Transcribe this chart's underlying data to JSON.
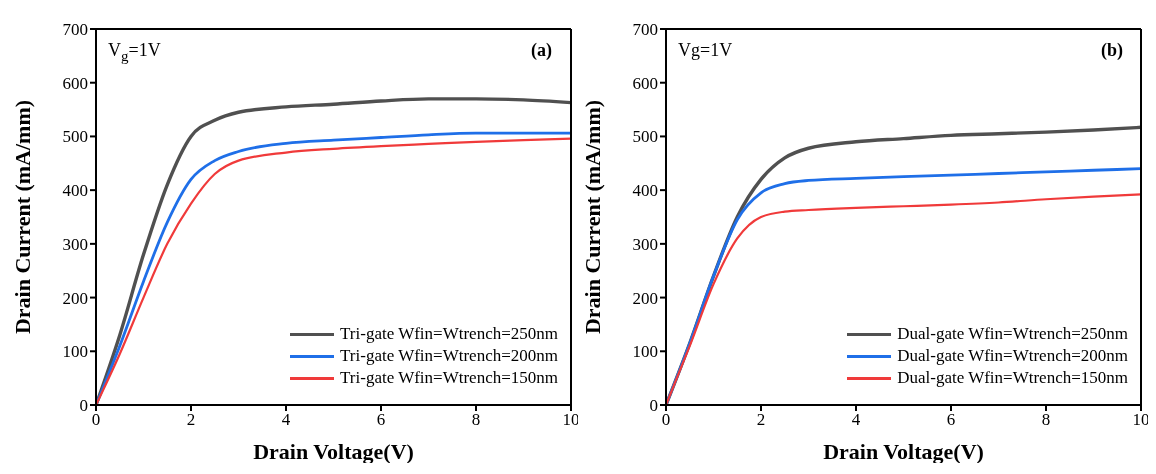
{
  "chart_data": [
    {
      "type": "line",
      "xlabel": "Drain Voltage(V)",
      "ylabel": "Drain Current (mA/mm)",
      "annotations": [
        "V$_{g}$=1V",
        "(a)"
      ],
      "x": [
        0,
        0.5,
        1,
        1.5,
        2,
        2.5,
        3,
        4,
        5,
        6,
        7,
        8,
        9,
        10
      ],
      "xlim": [
        0,
        10
      ],
      "xticks": [
        0,
        2,
        4,
        6,
        8,
        10
      ],
      "ylim": [
        0,
        700
      ],
      "yticks": [
        0,
        100,
        200,
        300,
        400,
        500,
        600,
        700
      ],
      "legend": "bottom right",
      "grid": false,
      "series": [
        {
          "name": "Tri-gate Wfin=Wtrench=250nm",
          "color": "#505050",
          "values": [
            0,
            130,
            280,
            410,
            500,
            530,
            545,
            555,
            560,
            566,
            570,
            570,
            568,
            563
          ]
        },
        {
          "name": "Tri-gate Wfin=Wtrench=200nm",
          "color": "#1f6fe8",
          "values": [
            0,
            110,
            230,
            340,
            420,
            455,
            472,
            487,
            493,
            498,
            503,
            506,
            506,
            506
          ]
        },
        {
          "name": "Tri-gate Wfin=Wtrench=150nm",
          "color": "#f03a3a",
          "values": [
            0,
            95,
            200,
            300,
            375,
            430,
            455,
            470,
            477,
            482,
            486,
            490,
            493,
            496
          ]
        }
      ]
    },
    {
      "type": "line",
      "xlabel": "Drain Voltage(V)",
      "ylabel": "Drain Current (mA/mm)",
      "annotations": [
        "Vg=1V",
        "(b)"
      ],
      "x": [
        0,
        0.5,
        1,
        1.5,
        2,
        2.5,
        3,
        4,
        5,
        6,
        7,
        8,
        9,
        10
      ],
      "xlim": [
        0,
        10
      ],
      "xticks": [
        0,
        2,
        4,
        6,
        8,
        10
      ],
      "ylim": [
        0,
        700
      ],
      "yticks": [
        0,
        100,
        200,
        300,
        400,
        500,
        600,
        700
      ],
      "legend": "bottom right",
      "grid": false,
      "series": [
        {
          "name": "Dual-gate Wfin=Wtrench=250nm",
          "color": "#505050",
          "values": [
            0,
            115,
            240,
            350,
            420,
            460,
            478,
            490,
            496,
            502,
            505,
            508,
            512,
            517
          ]
        },
        {
          "name": "Dual-gate Wfin=Wtrench=200nm",
          "color": "#1f6fe8",
          "values": [
            0,
            115,
            240,
            345,
            395,
            412,
            418,
            422,
            425,
            428,
            431,
            434,
            437,
            440
          ]
        },
        {
          "name": "Dual-gate Wfin=Wtrench=150nm",
          "color": "#f03a3a",
          "values": [
            0,
            110,
            225,
            310,
            350,
            360,
            363,
            367,
            370,
            373,
            377,
            383,
            388,
            392
          ]
        }
      ]
    }
  ]
}
